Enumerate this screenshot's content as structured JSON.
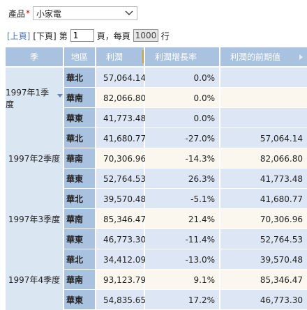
{
  "filter": {
    "label": "產品",
    "required_mark": "*",
    "value": "小家電"
  },
  "pager": {
    "prev": "[上頁]",
    "next": "[下頁]",
    "page_prefix": "第",
    "page_value": "1",
    "page_suffix": "頁，每頁",
    "size_value": "1000",
    "size_suffix": "行"
  },
  "table": {
    "headers": [
      "季",
      "地區",
      "利潤",
      "利潤增長率",
      "利潤的前期值"
    ],
    "groups": [
      {
        "quarter": "1997年1季度",
        "expanded": true,
        "rows": [
          {
            "region": "華北",
            "profit": "57,064.14",
            "growth": "0.0%",
            "prev": ""
          },
          {
            "region": "華南",
            "profit": "82,066.80",
            "growth": "0.0%",
            "prev": ""
          },
          {
            "region": "華東",
            "profit": "41,773.48",
            "growth": "0.0%",
            "prev": ""
          }
        ]
      },
      {
        "quarter": "1997年2季度",
        "rows": [
          {
            "region": "華北",
            "profit": "41,680.77",
            "growth": "-27.0%",
            "prev": "57,064.14"
          },
          {
            "region": "華南",
            "profit": "70,306.96",
            "growth": "-14.3%",
            "prev": "82,066.80"
          },
          {
            "region": "華東",
            "profit": "52,764.53",
            "growth": "26.3%",
            "prev": "41,773.48"
          }
        ]
      },
      {
        "quarter": "1997年3季度",
        "rows": [
          {
            "region": "華北",
            "profit": "39,570.48",
            "growth": "-5.1%",
            "prev": "41,680.77"
          },
          {
            "region": "華南",
            "profit": "85,346.47",
            "growth": "21.4%",
            "prev": "70,306.96"
          },
          {
            "region": "華東",
            "profit": "46,773.30",
            "growth": "-11.4%",
            "prev": "52,764.53"
          }
        ]
      },
      {
        "quarter": "1997年4季度",
        "rows": [
          {
            "region": "華北",
            "profit": "34,412.09",
            "growth": "-13.0%",
            "prev": "39,570.48"
          },
          {
            "region": "華南",
            "profit": "93,123.79",
            "growth": "9.1%",
            "prev": "85,346.47"
          },
          {
            "region": "華東",
            "profit": "54,835.65",
            "growth": "17.2%",
            "prev": "46,773.30"
          }
        ]
      }
    ]
  },
  "colors": {
    "header_bg": "#a9c2df",
    "quarter_bg": "#dbe6f3",
    "row_blue": "#dce6f4",
    "row_cream": "#fbf7ee",
    "sort_accent": "#e39b2e",
    "link": "#4a77b4"
  }
}
